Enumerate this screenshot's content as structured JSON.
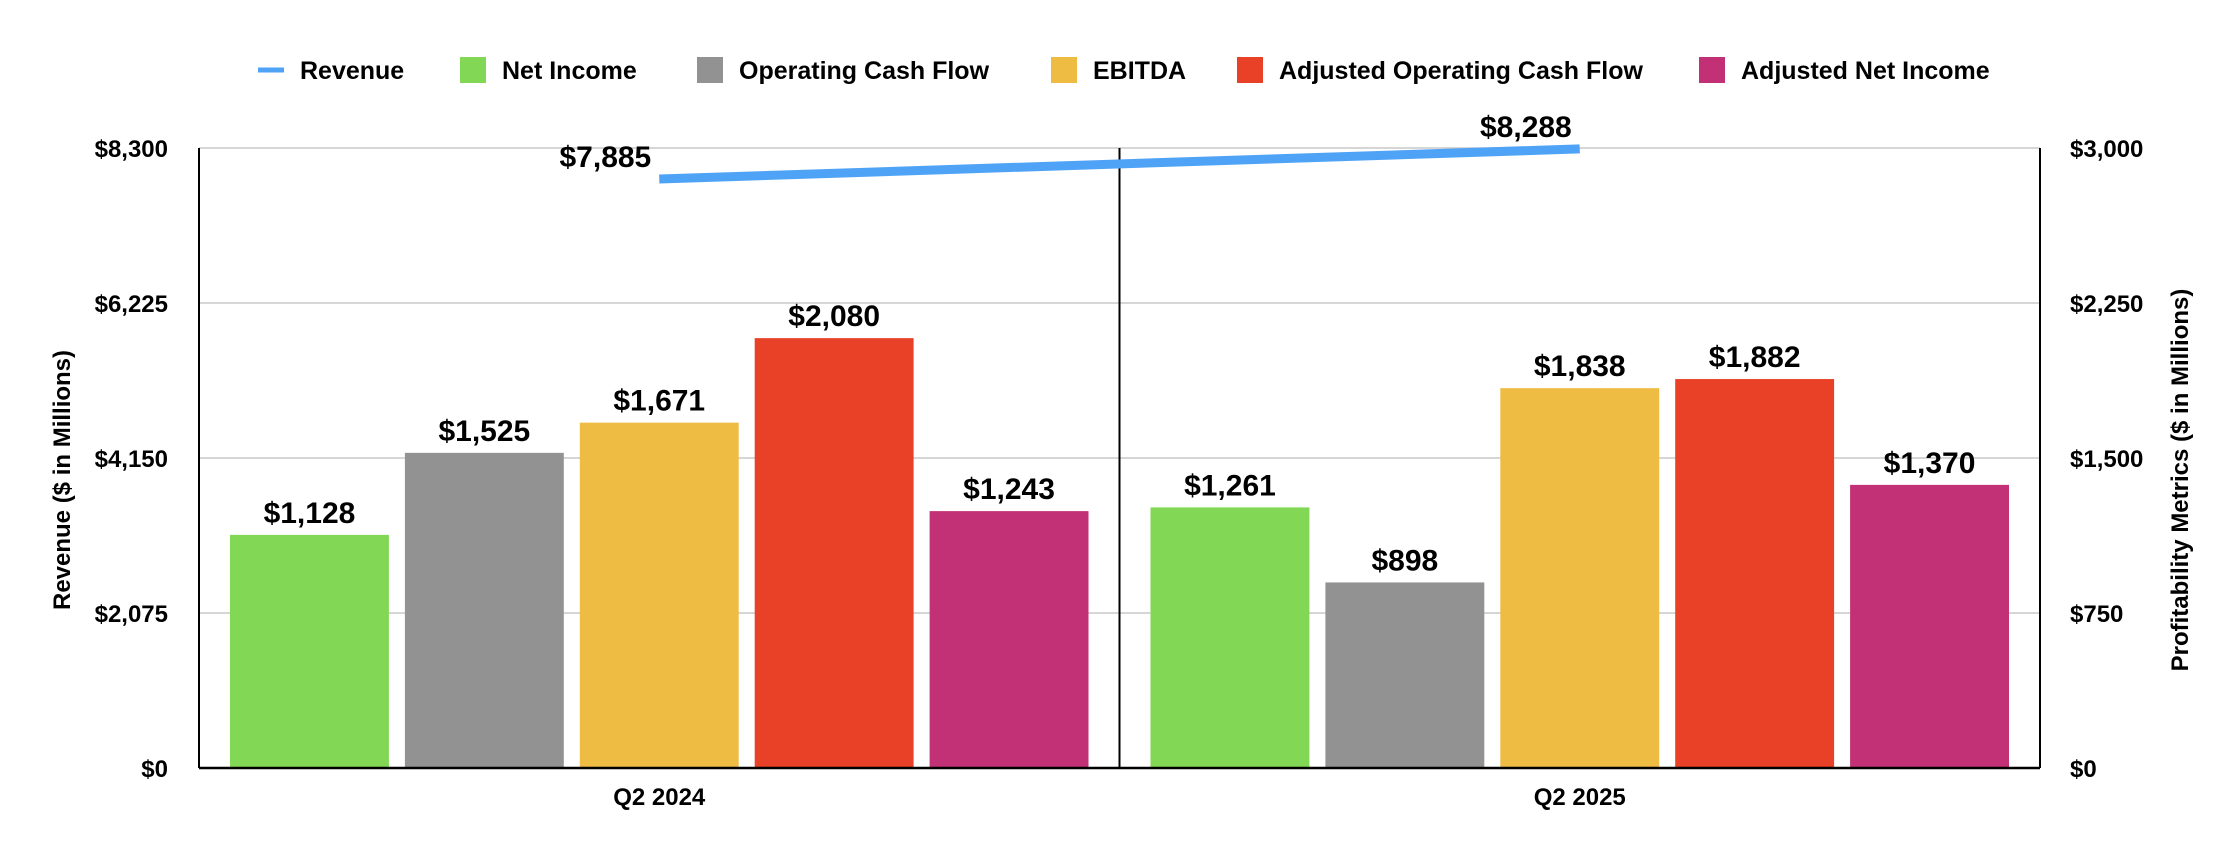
{
  "chart_data": {
    "type": "bar",
    "categories": [
      "Q2 2024",
      "Q2 2025"
    ],
    "ylabel": "Revenue ($ in Millions)",
    "y2label": "Profitability Metrics ($ in Millions)",
    "ylim": [
      0,
      8300
    ],
    "y2lim": [
      0,
      3000
    ],
    "yticks": [
      "$0",
      "$2,075",
      "$4,150",
      "$6,225",
      "$8,300"
    ],
    "y2ticks": [
      "$0",
      "$750",
      "$1,500",
      "$2,250",
      "$3,000"
    ],
    "grid": true,
    "legend_position": "top",
    "line_series": {
      "name": "Revenue",
      "axis": "left",
      "color": "#4FA3F7",
      "values": [
        7885,
        8288
      ],
      "labels": [
        "$7,885",
        "$8,288"
      ]
    },
    "series": [
      {
        "name": "Net Income",
        "color": "#82D854",
        "axis": "right",
        "values": [
          1128,
          1261
        ],
        "labels": [
          "$1,128",
          "$1,261"
        ]
      },
      {
        "name": "Operating Cash Flow",
        "color": "#929292",
        "axis": "right",
        "values": [
          1525,
          898
        ],
        "labels": [
          "$1,525",
          "$898"
        ]
      },
      {
        "name": "EBITDA",
        "color": "#EEBB43",
        "axis": "right",
        "values": [
          1671,
          1838
        ],
        "labels": [
          "$1,671",
          "$1,838"
        ]
      },
      {
        "name": "Adjusted Operating Cash Flow",
        "color": "#E84127",
        "axis": "right",
        "values": [
          2080,
          1882
        ],
        "labels": [
          "$2,080",
          "$1,882"
        ]
      },
      {
        "name": "Adjusted Net Income",
        "color": "#C23175",
        "axis": "right",
        "values": [
          1243,
          1370
        ],
        "labels": [
          "$1,243",
          "$1,370"
        ]
      }
    ]
  }
}
